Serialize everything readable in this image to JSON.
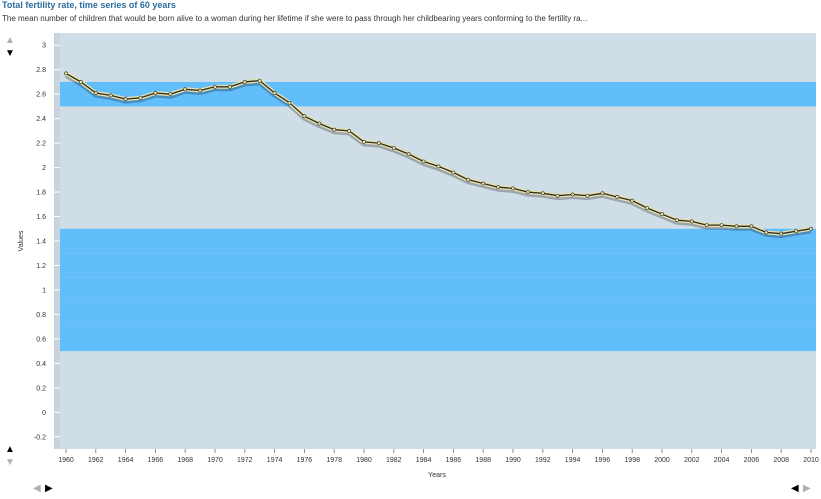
{
  "header": {
    "title": "Total fertility rate, time series of 60 years",
    "subtitle": "The mean number of children that would be born alive to a woman during her lifetime if she were to pass through her childbearing years conforming to the fertility ra..."
  },
  "controls": {
    "up_arrow": "▲",
    "down_arrow": "▼",
    "left_arrow": "◀",
    "right_arrow": "▶"
  },
  "colors": {
    "band_blue": "#62bdfb",
    "band_gray": "#cfdde6",
    "axis_strip": "#c8d3e0",
    "line_glow": "#e8e2a6",
    "line_core": "#2b2b2b"
  },
  "chart_data": {
    "type": "line",
    "title": "",
    "xlabel": "Years",
    "ylabel": "Values",
    "xlim": [
      1960,
      2010
    ],
    "ylim": [
      -0.3,
      3.1
    ],
    "y_ticks": [
      "3",
      "2.8",
      "2.6",
      "2.4",
      "2.2",
      "2",
      "1.8",
      "1.6",
      "1.4",
      "1.2",
      "1",
      "0.8",
      "0.6",
      "0.4",
      "0.2",
      "0",
      "-0.2"
    ],
    "x_ticks": [
      "1960",
      "1962",
      "1964",
      "1966",
      "1968",
      "1970",
      "1972",
      "1974",
      "1976",
      "1978",
      "1980",
      "1982",
      "1984",
      "1986",
      "1988",
      "1990",
      "1992",
      "1994",
      "1996",
      "1998",
      "2000",
      "2002",
      "2004",
      "2006",
      "2008",
      "2010"
    ],
    "grid": "horizontal bands",
    "series": [
      {
        "x": [
          1960,
          1961,
          1962,
          1963,
          1964,
          1965,
          1966,
          1967,
          1968,
          1969,
          1970,
          1971,
          1972,
          1973,
          1974,
          1975,
          1976,
          1977,
          1978,
          1979,
          1980,
          1981,
          1982,
          1983,
          1984,
          1985,
          1986,
          1987,
          1988,
          1989,
          1990,
          1991,
          1992,
          1993,
          1994,
          1995,
          1996,
          1997,
          1998,
          1999,
          2000,
          2001,
          2002,
          2003,
          2004,
          2005,
          2006,
          2007,
          2008,
          2009,
          2010
        ],
        "values": [
          2.77,
          2.7,
          2.61,
          2.59,
          2.56,
          2.57,
          2.61,
          2.6,
          2.64,
          2.63,
          2.66,
          2.66,
          2.7,
          2.71,
          2.61,
          2.53,
          2.42,
          2.36,
          2.31,
          2.3,
          2.21,
          2.2,
          2.16,
          2.11,
          2.05,
          2.01,
          1.96,
          1.9,
          1.87,
          1.84,
          1.83,
          1.8,
          1.79,
          1.77,
          1.78,
          1.77,
          1.79,
          1.76,
          1.73,
          1.67,
          1.62,
          1.57,
          1.56,
          1.53,
          1.53,
          1.52,
          1.52,
          1.47,
          1.46,
          1.48,
          1.5
        ]
      }
    ]
  }
}
